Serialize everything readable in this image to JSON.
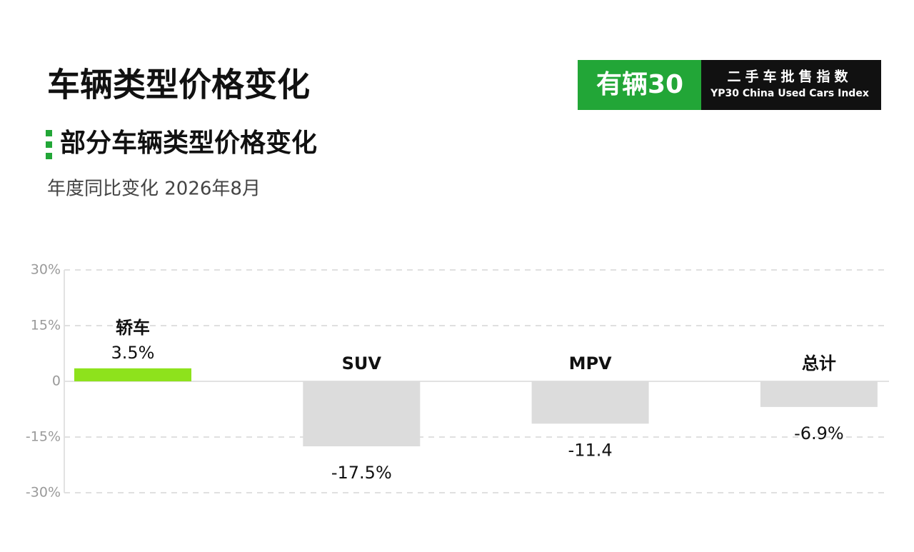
{
  "chart_data": {
    "type": "bar",
    "title": "车辆类型价格变化",
    "subtitle": "部分车辆类型价格变化",
    "note": "年度同比变化 2026年8月",
    "logo": {
      "brand": "有辆30",
      "name": "二手车批售指数",
      "name_en": "YP30 China Used Cars Index"
    },
    "categories": [
      "轿车",
      "SUV",
      "MPV",
      "总计"
    ],
    "values": [
      3.5,
      -17.5,
      -11.4,
      -6.9
    ],
    "value_labels": [
      "3.5%",
      "-17.5%",
      "-11.4",
      "-6.9%"
    ],
    "colors": [
      "#8ee21c",
      "#dcdcdc",
      "#dcdcdc",
      "#dcdcdc"
    ],
    "ylim": [
      -30,
      30
    ],
    "yticks": [
      {
        "value": 30,
        "label": "30%"
      },
      {
        "value": 15,
        "label": "15%"
      },
      0,
      {
        "value": -15,
        "label": "-15%"
      },
      {
        "value": -30,
        "label": "-30%"
      }
    ],
    "grid": true
  }
}
